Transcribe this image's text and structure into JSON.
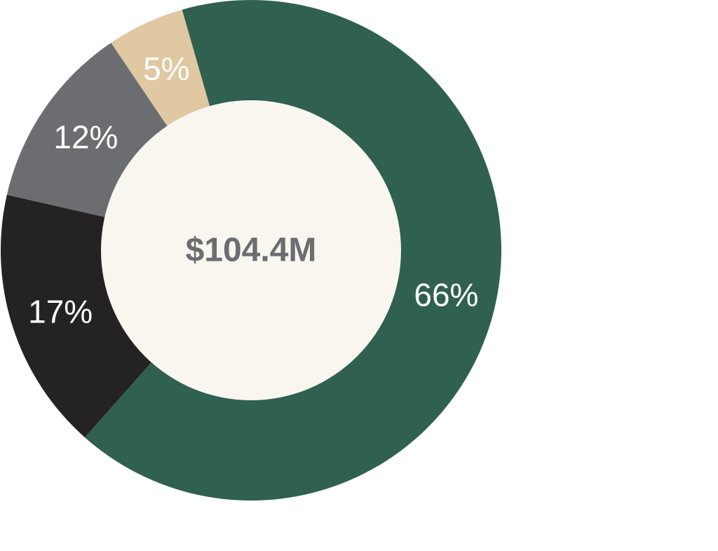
{
  "chart_data": {
    "type": "pie",
    "variant": "donut",
    "center_text": "$104.4M",
    "slices": [
      {
        "label": "66%",
        "value": 66,
        "color": "#306050"
      },
      {
        "label": "17%",
        "value": 17,
        "color": "#252223"
      },
      {
        "label": "12%",
        "value": 12,
        "color": "#6c6d70"
      },
      {
        "label": "5%",
        "value": 5,
        "color": "#dfc8a2"
      }
    ],
    "colors": {
      "hole": "#f9f6f0",
      "center_text": "#6c6d70",
      "slice_text": "#ffffff"
    }
  }
}
